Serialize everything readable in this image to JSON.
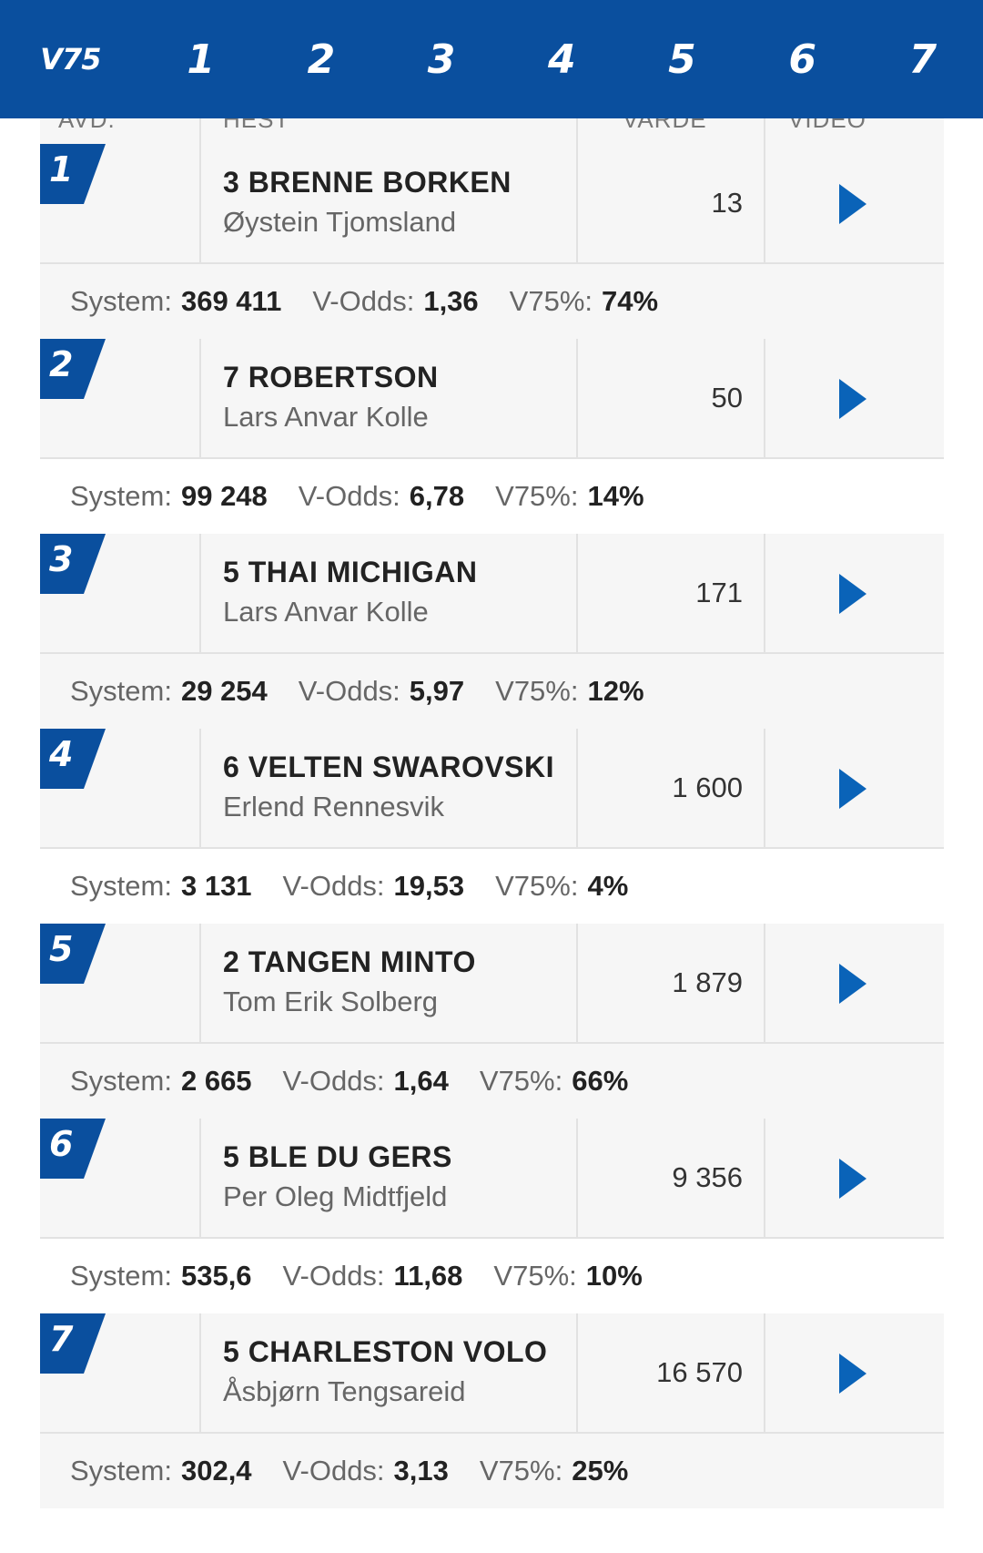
{
  "nav": {
    "label": "V75",
    "legs": [
      "1",
      "2",
      "3",
      "4",
      "5",
      "6",
      "7"
    ]
  },
  "columns": [
    "AVD.",
    "HEST",
    "VARDE",
    "VIDEO"
  ],
  "colors": {
    "primary": "#0a4f9e",
    "row_bg": "#f6f6f6",
    "divider": "#e2e2e2"
  },
  "labels": {
    "system": "System:",
    "vodds": "V-Odds:",
    "v75pct": "V75%:"
  },
  "legs": [
    {
      "leg": "1",
      "horse": "3 BRENNE BORKEN",
      "driver": "Øystein Tjomsland",
      "value": "13",
      "system": "369 411",
      "vodds": "1,36",
      "v75pct": "74%"
    },
    {
      "leg": "2",
      "horse": "7 ROBERTSON",
      "driver": "Lars Anvar Kolle",
      "value": "50",
      "system": "99 248",
      "vodds": "6,78",
      "v75pct": "14%"
    },
    {
      "leg": "3",
      "horse": "5 THAI MICHIGAN",
      "driver": "Lars Anvar Kolle",
      "value": "171",
      "system": "29 254",
      "vodds": "5,97",
      "v75pct": "12%"
    },
    {
      "leg": "4",
      "horse": "6 VELTEN SWAROVSKI",
      "driver": "Erlend Rennesvik",
      "value": "1 600",
      "system": "3 131",
      "vodds": "19,53",
      "v75pct": "4%"
    },
    {
      "leg": "5",
      "horse": "2 TANGEN MINTO",
      "driver": "Tom Erik Solberg",
      "value": "1 879",
      "system": "2 665",
      "vodds": "1,64",
      "v75pct": "66%"
    },
    {
      "leg": "6",
      "horse": "5 BLE DU GERS",
      "driver": "Per Oleg Midtfjeld",
      "value": "9 356",
      "system": "535,6",
      "vodds": "11,68",
      "v75pct": "10%"
    },
    {
      "leg": "7",
      "horse": "5 CHARLESTON VOLO",
      "driver": "Åsbjørn Tengsareid",
      "value": "16 570",
      "system": "302,4",
      "vodds": "3,13",
      "v75pct": "25%"
    }
  ]
}
